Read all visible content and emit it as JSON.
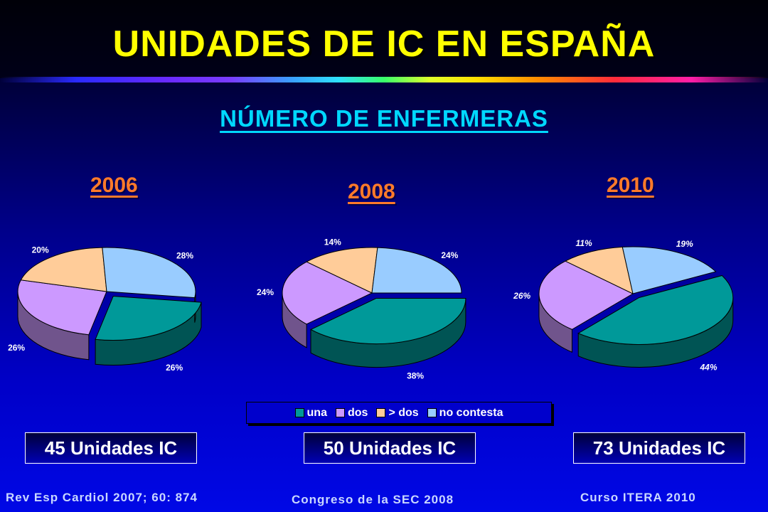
{
  "slide": {
    "title": "UNIDADES DE IC EN ESPAÑA",
    "subtitle": "NÚMERO DE ENFERMERAS"
  },
  "colors": {
    "una": "#009999",
    "dos": "#cc99ff",
    "mas_dos": "#ffcc99",
    "no_contesta": "#99ccff",
    "title": "#ffff00",
    "subtitle": "#00d8ff",
    "year": "#ff7a2a"
  },
  "chart_data": [
    {
      "type": "pie",
      "title": "2006",
      "categories": [
        "una",
        "dos",
        "> dos",
        "no contesta"
      ],
      "values": [
        26,
        26,
        20,
        28
      ],
      "labels": [
        "26%",
        "26%",
        "20%",
        "28%"
      ],
      "units": "45 Unidades IC"
    },
    {
      "type": "pie",
      "title": "2008",
      "categories": [
        "una",
        "dos",
        "> dos",
        "no contesta"
      ],
      "values": [
        38,
        24,
        14,
        24
      ],
      "labels": [
        "38%",
        "24%",
        "14%",
        "24%"
      ],
      "units": "50 Unidades IC"
    },
    {
      "type": "pie",
      "title": "2010",
      "categories": [
        "una",
        "dos",
        "> dos",
        "no contesta"
      ],
      "values": [
        44,
        26,
        11,
        19
      ],
      "labels": [
        "44%",
        "26%",
        "11%",
        "19%"
      ],
      "units": "73 Unidades IC"
    }
  ],
  "legend": {
    "items": [
      "una",
      "dos",
      "> dos",
      "no contesta"
    ],
    "placement": "bottom-center"
  },
  "sources": [
    "Rev Esp Cardiol 2007; 60: 874",
    "Congreso de la SEC 2008",
    "Curso ITERA 2010"
  ]
}
